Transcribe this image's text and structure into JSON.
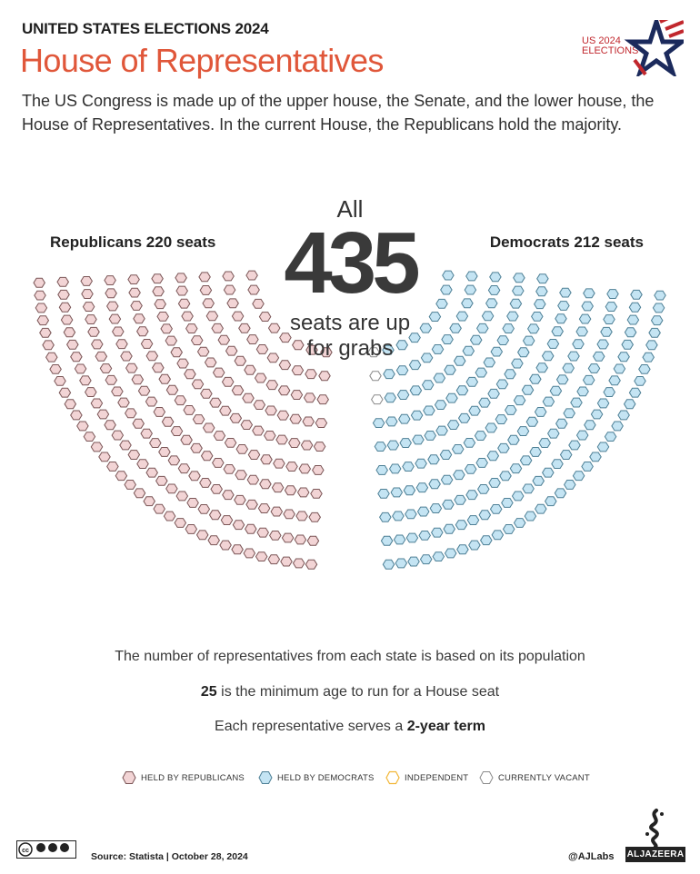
{
  "header": {
    "kicker": "UNITED STATES ELECTIONS 2024",
    "title": "House of Representatives",
    "intro": "The US Congress is made up of the upper house, the Senate, and the lower house, the House of Representatives. In the current House, the Republicans hold the majority."
  },
  "logo": {
    "line1": "US 2024",
    "line2": "ELECTIONS"
  },
  "center": {
    "all": "All",
    "total": "435",
    "sub_line1": "seats are up",
    "sub_line2": "for grabs"
  },
  "parties": {
    "republicans": {
      "label": "Republicans 220 seats",
      "seats": 220,
      "fill": "#f2d4d5",
      "stroke": "#7a5556"
    },
    "democrats": {
      "label": "Democrats 212 seats",
      "seats": 212,
      "fill": "#c4e4f3",
      "stroke": "#4d7f95"
    },
    "vacant": {
      "seats": 3,
      "fill": "#ffffff",
      "stroke": "#8a8a8a"
    },
    "independent": {
      "seats": 0,
      "fill": "#ffffff",
      "stroke": "#f2b636"
    }
  },
  "facts": {
    "f1": "The number of representatives from each state is based on its population",
    "f2_bold": "25",
    "f2_rest": " is the minimum age to run for a House seat",
    "f3_pre": "Each representative serves a ",
    "f3_bold": "2-year term"
  },
  "legend": {
    "republicans": "HELD BY REPUBLICANS",
    "democrats": "HELD BY DEMOCRATS",
    "independent": "INDEPENDENT",
    "vacant": "CURRENTLY VACANT"
  },
  "footer": {
    "source": "Source:  Statista  |  October 28, 2024",
    "handle": "@AJLabs",
    "brand": "ALJAZEERA",
    "license": "cc BY NC SA"
  }
}
